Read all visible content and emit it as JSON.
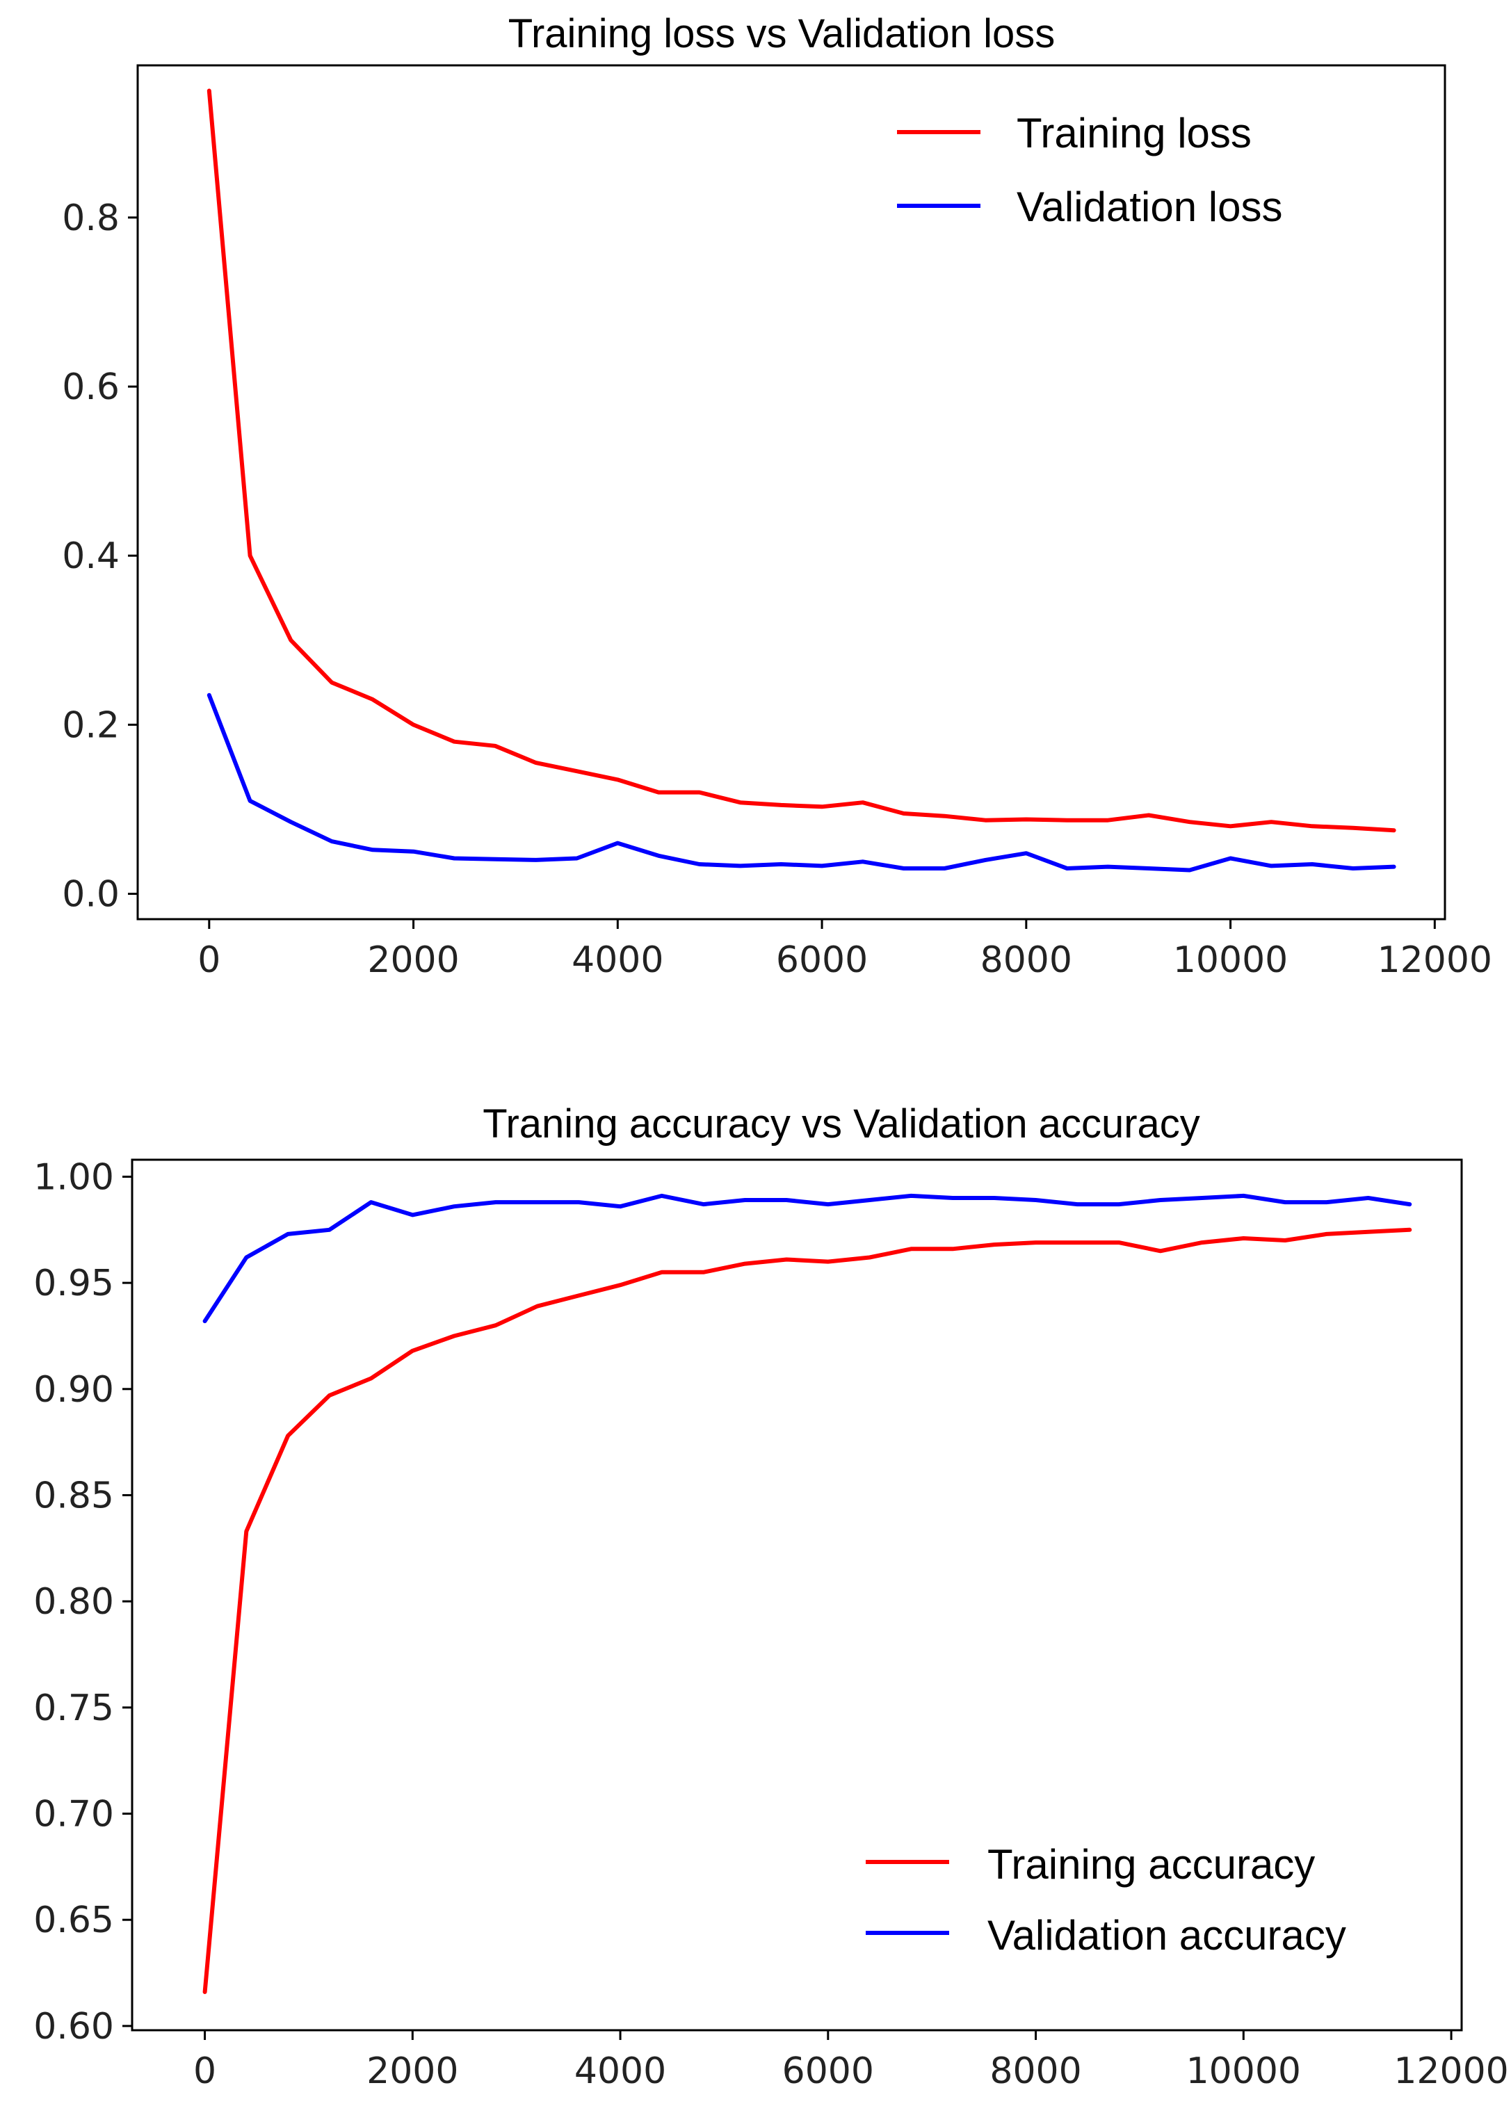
{
  "chart_data": [
    {
      "type": "line",
      "title": "Training loss vs Validation loss",
      "xlabel": "",
      "ylabel": "",
      "xlim": [
        -700,
        12100
      ],
      "ylim": [
        -0.03,
        0.98
      ],
      "xticks": [
        0,
        2000,
        4000,
        6000,
        8000,
        10000,
        12000
      ],
      "xtick_labels": [
        "0",
        "2000",
        "4000",
        "6000",
        "8000",
        "10000",
        "12000"
      ],
      "yticks": [
        0.0,
        0.2,
        0.4,
        0.6,
        0.8
      ],
      "ytick_labels": [
        "0.0",
        "0.2",
        "0.4",
        "0.6",
        "0.8"
      ],
      "legend_position": "top-right",
      "x": [
        0,
        400,
        800,
        1200,
        1600,
        2000,
        2400,
        2800,
        3200,
        3600,
        4000,
        4400,
        4800,
        5200,
        5600,
        6000,
        6400,
        6800,
        7200,
        7600,
        8000,
        8400,
        8800,
        9200,
        9600,
        10000,
        10400,
        10800,
        11200,
        11600
      ],
      "series": [
        {
          "name": "Training loss",
          "color": "#ff0000",
          "values": [
            0.95,
            0.4,
            0.3,
            0.25,
            0.23,
            0.2,
            0.18,
            0.175,
            0.155,
            0.145,
            0.135,
            0.12,
            0.12,
            0.108,
            0.105,
            0.103,
            0.108,
            0.095,
            0.092,
            0.087,
            0.088,
            0.087,
            0.087,
            0.093,
            0.085,
            0.08,
            0.085,
            0.08,
            0.078,
            0.075
          ]
        },
        {
          "name": "Validation loss",
          "color": "#0000ff",
          "values": [
            0.235,
            0.11,
            0.085,
            0.062,
            0.052,
            0.05,
            0.042,
            0.041,
            0.04,
            0.042,
            0.06,
            0.045,
            0.035,
            0.033,
            0.035,
            0.033,
            0.038,
            0.03,
            0.03,
            0.04,
            0.048,
            0.03,
            0.032,
            0.03,
            0.028,
            0.042,
            0.033,
            0.035,
            0.03,
            0.032
          ]
        }
      ]
    },
    {
      "type": "line",
      "title": "Traning accuracy vs Validation accuracy",
      "xlabel": "",
      "ylabel": "",
      "xlim": [
        -700,
        12100
      ],
      "ylim": [
        0.598,
        1.008
      ],
      "xticks": [
        0,
        2000,
        4000,
        6000,
        8000,
        10000,
        12000
      ],
      "xtick_labels": [
        "0",
        "2000",
        "4000",
        "6000",
        "8000",
        "10000",
        "12000"
      ],
      "yticks": [
        0.6,
        0.65,
        0.7,
        0.75,
        0.8,
        0.85,
        0.9,
        0.95,
        1.0
      ],
      "ytick_labels": [
        "0.60",
        "0.65",
        "0.70",
        "0.75",
        "0.80",
        "0.85",
        "0.90",
        "0.95",
        "1.00"
      ],
      "legend_position": "bottom-right",
      "x": [
        0,
        400,
        800,
        1200,
        1600,
        2000,
        2400,
        2800,
        3200,
        3600,
        4000,
        4400,
        4800,
        5200,
        5600,
        6000,
        6400,
        6800,
        7200,
        7600,
        8000,
        8400,
        8800,
        9200,
        9600,
        10000,
        10400,
        10800,
        11200,
        11600
      ],
      "series": [
        {
          "name": "Training accuracy",
          "color": "#ff0000",
          "values": [
            0.616,
            0.833,
            0.878,
            0.897,
            0.905,
            0.918,
            0.925,
            0.93,
            0.939,
            0.944,
            0.949,
            0.955,
            0.955,
            0.959,
            0.961,
            0.96,
            0.962,
            0.966,
            0.966,
            0.968,
            0.969,
            0.969,
            0.969,
            0.965,
            0.969,
            0.971,
            0.97,
            0.973,
            0.974,
            0.975
          ]
        },
        {
          "name": "Validation accuracy",
          "color": "#0000ff",
          "values": [
            0.932,
            0.962,
            0.973,
            0.975,
            0.988,
            0.982,
            0.986,
            0.988,
            0.988,
            0.988,
            0.986,
            0.991,
            0.987,
            0.989,
            0.989,
            0.987,
            0.989,
            0.991,
            0.99,
            0.99,
            0.989,
            0.987,
            0.987,
            0.989,
            0.99,
            0.991,
            0.988,
            0.988,
            0.99,
            0.987
          ]
        }
      ]
    }
  ]
}
